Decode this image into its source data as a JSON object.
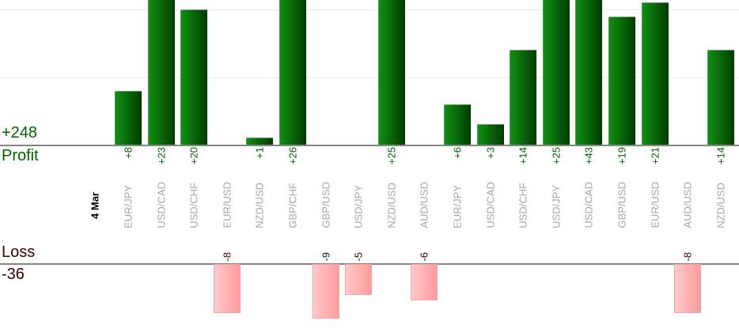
{
  "chart_data": {
    "type": "bar",
    "title": "",
    "date_label": "4 Mar",
    "categories": [
      "EUR/JPY",
      "USD/CAD",
      "USD/CHF",
      "EUR/USD",
      "NZD/USD",
      "GBP/CHF",
      "GBP/USD",
      "USD/JPY",
      "NZD/USD",
      "AUD/USD",
      "EUR/JPY",
      "USD/CAD",
      "USD/CHF",
      "USD/JPY",
      "USD/CAD",
      "GBP/USD",
      "EUR/USD",
      "AUD/USD",
      "NZD/USD"
    ],
    "series": [
      {
        "name": "Profit",
        "values": [
          8,
          23,
          20,
          null,
          1,
          26,
          null,
          null,
          25,
          null,
          6,
          3,
          14,
          25,
          43,
          19,
          21,
          null,
          14
        ],
        "labels": [
          "+8",
          "+23",
          "+20",
          null,
          "+1",
          "+26",
          null,
          null,
          "+25",
          null,
          "+6",
          "+3",
          "+14",
          "+25",
          "+43",
          "+19",
          "+21",
          null,
          "+14"
        ]
      },
      {
        "name": "Loss",
        "values": [
          null,
          null,
          null,
          -8,
          null,
          null,
          -9,
          -5,
          null,
          -6,
          null,
          null,
          null,
          null,
          null,
          null,
          null,
          -8,
          null
        ],
        "labels": [
          null,
          null,
          null,
          "-8",
          null,
          null,
          "-9",
          "-5",
          null,
          "-6",
          null,
          null,
          null,
          null,
          null,
          null,
          null,
          "-8",
          null
        ]
      }
    ],
    "profit_row": {
      "label": "Profit",
      "total": "+248"
    },
    "loss_row": {
      "label": "Loss",
      "total": "-36"
    },
    "axis": {
      "profit_gridline_values": [
        10,
        20
      ],
      "profit_visible_max": 21,
      "grid": true,
      "legend_position": "none",
      "clipped_profit_bars_at_top": true
    },
    "colors": {
      "profit_text": "#006600",
      "loss_text": "#3b0000",
      "category_text": "#a6a6a6",
      "date_text": "#000000",
      "profit_bar_gradient_start": "#119111",
      "profit_bar_gradient_end": "#003c00",
      "loss_bar_gradient_start": "#ffc9c9",
      "loss_bar_gradient_end": "#ff9b9b",
      "loss_bar_border": "#f0a6a6",
      "axis_line": "#858585",
      "gridline": "#ededed"
    }
  }
}
